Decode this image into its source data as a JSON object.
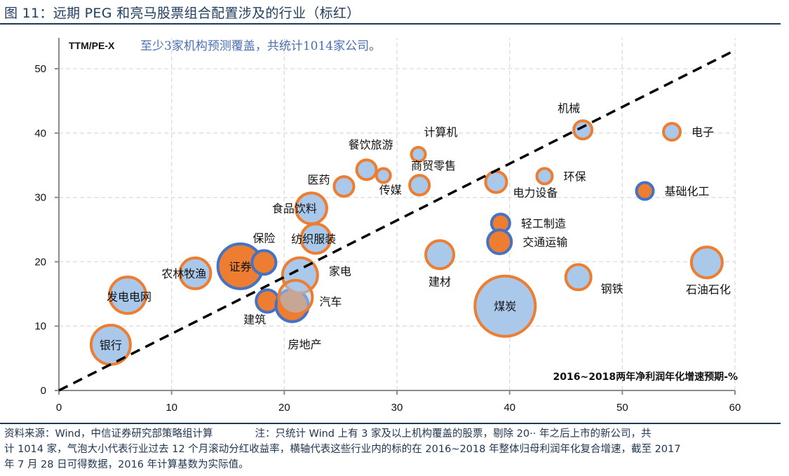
{
  "figure": {
    "title": "图 11：远期 PEG 和亮马股票组合配置涉及的行业（标红）",
    "source": "资料来源：Wind，中信证券研究部策略组计算",
    "note_line1": "注：只统计 Wind 上有 3 家及以上机构覆盖的股票，剔除 20·· 年之后上市的新公司，共",
    "note_line2": "计 1014 家，气泡大小代表行业过去 12 个月滚动分红收益率，横轴代表这些行业内的标的在 2016~2018 年整体归母利润年化复合增速，截至 2017",
    "note_line3": "年 7 月 28 日可得数据，2016 年计算基数为实际值。"
  },
  "chart_data": {
    "type": "bubble",
    "title": "至少3家机构预测覆盖，共统计1014家公司。",
    "ylabel": "TTM/PE-X",
    "xlabel": "2016~2018两年净利润年化增速预期-%",
    "xlim": [
      0,
      60
    ],
    "ylim": [
      0,
      50
    ],
    "xticks": [
      0,
      10,
      20,
      30,
      40,
      50,
      60
    ],
    "yticks": [
      0,
      10,
      20,
      30,
      40,
      50
    ],
    "grid": true,
    "reference_line": {
      "style": "dashed",
      "color": "#000000",
      "from": [
        0,
        0
      ],
      "to": [
        60,
        52.7
      ]
    },
    "colors": {
      "normal_fill": "#a9c8ea",
      "normal_border": "#ed7d31",
      "highlight_fill": "#ed7d31",
      "highlight_border": "#4472c4"
    },
    "size_note": "bubble size = trailing 12-month dividend yield (relative)",
    "points": [
      {
        "name": "银行",
        "x": 4.6,
        "y": 7.1,
        "size": 30,
        "highlight": false,
        "label_pos": "center"
      },
      {
        "name": "发电电网",
        "x": 6.1,
        "y": 14.8,
        "size": 28,
        "highlight": false,
        "label_pos": "center-wide"
      },
      {
        "name": "农林牧渔",
        "x": 12.1,
        "y": 18.2,
        "size": 24,
        "highlight": false,
        "label_pos": "center-left"
      },
      {
        "name": "证券",
        "x": 16.1,
        "y": 19.3,
        "size": 34,
        "highlight": true,
        "label_pos": "center"
      },
      {
        "name": "保险",
        "x": 18.2,
        "y": 19.9,
        "size": 19,
        "highlight": true,
        "label_pos": "top"
      },
      {
        "name": "建筑",
        "x": 18.5,
        "y": 13.9,
        "size": 18,
        "highlight": true,
        "label_pos": "bottom-left"
      },
      {
        "name": "房地产",
        "x": 20.7,
        "y": 13.2,
        "size": 25,
        "highlight": true,
        "label_pos": "below"
      },
      {
        "name": "汽车",
        "x": 21.0,
        "y": 14.5,
        "size": 26,
        "highlight": false,
        "label_pos": "right"
      },
      {
        "name": "家电",
        "x": 21.4,
        "y": 17.9,
        "size": 27,
        "highlight": false,
        "label_pos": "right"
      },
      {
        "name": "纺织服装",
        "x": 22.8,
        "y": 23.6,
        "size": 23,
        "highlight": false,
        "label_pos": "center"
      },
      {
        "name": "食品饮料",
        "x": 22.4,
        "y": 28.3,
        "size": 24,
        "highlight": false,
        "label_pos": "center-left"
      },
      {
        "name": "医药",
        "x": 25.3,
        "y": 31.7,
        "size": 16,
        "highlight": false,
        "label_pos": "top-left"
      },
      {
        "name": "餐饮旅游",
        "x": 27.3,
        "y": 34.3,
        "size": 16,
        "highlight": false,
        "label_pos": "top"
      },
      {
        "name": "传媒",
        "x": 28.8,
        "y": 33.4,
        "size": 12,
        "highlight": false,
        "label_pos": "bottom"
      },
      {
        "name": "计算机",
        "x": 31.9,
        "y": 36.7,
        "size": 12,
        "highlight": false,
        "label_pos": "top-right"
      },
      {
        "name": "商贸零售",
        "x": 32.0,
        "y": 31.9,
        "size": 16,
        "highlight": false,
        "label_pos": "top-right"
      },
      {
        "name": "电力设备",
        "x": 38.8,
        "y": 32.4,
        "size": 17,
        "highlight": false,
        "label_pos": "bottom-right"
      },
      {
        "name": "环保",
        "x": 43.1,
        "y": 33.3,
        "size": 13,
        "highlight": false,
        "label_pos": "right"
      },
      {
        "name": "机械",
        "x": 46.5,
        "y": 40.5,
        "size": 15,
        "highlight": false,
        "label_pos": "top"
      },
      {
        "name": "电子",
        "x": 54.4,
        "y": 40.2,
        "size": 14,
        "highlight": false,
        "label_pos": "right"
      },
      {
        "name": "基础化工",
        "x": 52.0,
        "y": 31.0,
        "size": 14,
        "highlight": true,
        "label_pos": "right"
      },
      {
        "name": "轻工制造",
        "x": 39.2,
        "y": 26.0,
        "size": 15,
        "highlight": true,
        "label_pos": "right"
      },
      {
        "name": "交通运输",
        "x": 39.1,
        "y": 23.1,
        "size": 19,
        "highlight": true,
        "label_pos": "right"
      },
      {
        "name": "建材",
        "x": 33.8,
        "y": 21.1,
        "size": 22,
        "highlight": false,
        "label_pos": "bottom"
      },
      {
        "name": "煤炭",
        "x": 39.6,
        "y": 13.1,
        "size": 45,
        "highlight": false,
        "label_pos": "center"
      },
      {
        "name": "钢铁",
        "x": 46.1,
        "y": 17.6,
        "size": 20,
        "highlight": false,
        "label_pos": "bottom-right"
      },
      {
        "name": "石油石化",
        "x": 57.5,
        "y": 19.9,
        "size": 24,
        "highlight": false,
        "label_pos": "bottom"
      }
    ]
  }
}
